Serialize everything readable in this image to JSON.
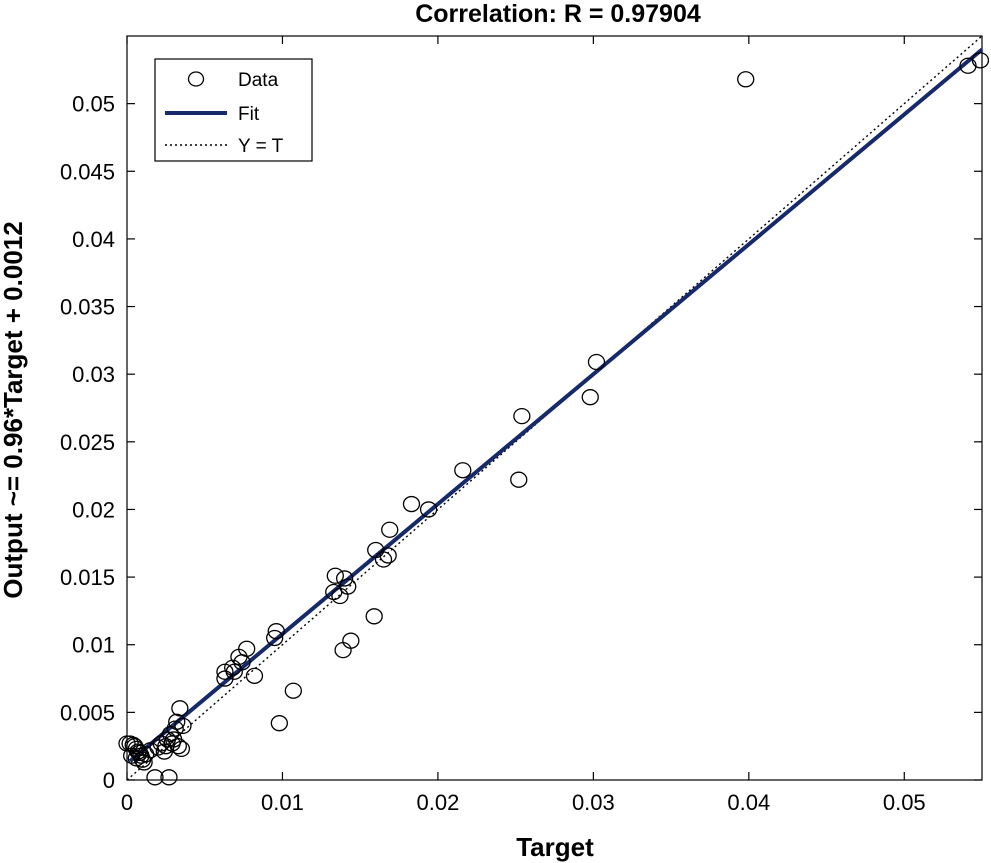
{
  "chart_data": {
    "type": "scatter",
    "title": "Correlation: R = 0.97904",
    "xlabel": "Target",
    "ylabel": "Output ~= 0.96*Target + 0.0012",
    "xlim": [
      0,
      0.055
    ],
    "ylim": [
      0,
      0.055
    ],
    "x_ticks": [
      0,
      0.01,
      0.02,
      0.03,
      0.04,
      0.05
    ],
    "x_tick_labels": [
      "0",
      "0.01",
      "0.02",
      "0.03",
      "0.04",
      "0.05"
    ],
    "y_ticks": [
      0,
      0.005,
      0.01,
      0.015,
      0.02,
      0.025,
      0.03,
      0.035,
      0.04,
      0.045,
      0.05
    ],
    "y_tick_labels": [
      "0",
      "0.005",
      "0.01",
      "0.015",
      "0.02",
      "0.025",
      "0.03",
      "0.035",
      "0.04",
      "0.045",
      "0.05"
    ],
    "grid": false,
    "legend": {
      "position": "top-left",
      "entries": [
        {
          "label": "Data",
          "style": "circle-marker"
        },
        {
          "label": "Fit",
          "style": "solid-line"
        },
        {
          "label": "Y = T",
          "style": "dotted-line"
        }
      ]
    },
    "fit": {
      "slope": 0.96,
      "intercept": 0.0012,
      "color": "#15296b"
    },
    "identity_line": {
      "color": "#000000"
    },
    "marker_color": "#000000",
    "series": [
      {
        "name": "Data",
        "points": [
          [
            0.0,
            0.0027
          ],
          [
            0.0002,
            0.0027
          ],
          [
            0.0004,
            0.0026
          ],
          [
            0.0005,
            0.0025
          ],
          [
            0.0006,
            0.0023
          ],
          [
            0.0007,
            0.0021
          ],
          [
            0.0008,
            0.002
          ],
          [
            0.0009,
            0.0018
          ],
          [
            0.0003,
            0.0018
          ],
          [
            0.0006,
            0.0016
          ],
          [
            0.001,
            0.0015
          ],
          [
            0.0011,
            0.0013
          ],
          [
            0.0012,
            0.0019
          ],
          [
            0.0015,
            0.0022
          ],
          [
            0.0018,
            0.0002
          ],
          [
            0.002,
            0.0024
          ],
          [
            0.0022,
            0.0027
          ],
          [
            0.0024,
            0.0021
          ],
          [
            0.0025,
            0.0025
          ],
          [
            0.0026,
            0.003
          ],
          [
            0.0027,
            0.0002
          ],
          [
            0.0028,
            0.0034
          ],
          [
            0.0029,
            0.0027
          ],
          [
            0.003,
            0.003
          ],
          [
            0.0031,
            0.0038
          ],
          [
            0.0032,
            0.0043
          ],
          [
            0.0033,
            0.0025
          ],
          [
            0.0034,
            0.0053
          ],
          [
            0.0035,
            0.0023
          ],
          [
            0.0036,
            0.004
          ],
          [
            0.0063,
            0.008
          ],
          [
            0.0063,
            0.0075
          ],
          [
            0.0068,
            0.0083
          ],
          [
            0.0069,
            0.008
          ],
          [
            0.0072,
            0.0091
          ],
          [
            0.0074,
            0.0087
          ],
          [
            0.0077,
            0.0097
          ],
          [
            0.0082,
            0.0077
          ],
          [
            0.0095,
            0.0105
          ],
          [
            0.0096,
            0.011
          ],
          [
            0.0098,
            0.0042
          ],
          [
            0.0107,
            0.0066
          ],
          [
            0.0133,
            0.0139
          ],
          [
            0.0134,
            0.0151
          ],
          [
            0.0137,
            0.0136
          ],
          [
            0.0139,
            0.0096
          ],
          [
            0.014,
            0.0149
          ],
          [
            0.0142,
            0.0143
          ],
          [
            0.0144,
            0.0103
          ],
          [
            0.0159,
            0.0121
          ],
          [
            0.016,
            0.017
          ],
          [
            0.0165,
            0.0163
          ],
          [
            0.0168,
            0.0166
          ],
          [
            0.0169,
            0.0185
          ],
          [
            0.0183,
            0.0204
          ],
          [
            0.0194,
            0.02
          ],
          [
            0.0216,
            0.0229
          ],
          [
            0.0252,
            0.0222
          ],
          [
            0.0254,
            0.0269
          ],
          [
            0.0298,
            0.0283
          ],
          [
            0.0302,
            0.0309
          ],
          [
            0.0398,
            0.0518
          ],
          [
            0.0541,
            0.0528
          ],
          [
            0.0549,
            0.0532
          ]
        ]
      }
    ]
  }
}
